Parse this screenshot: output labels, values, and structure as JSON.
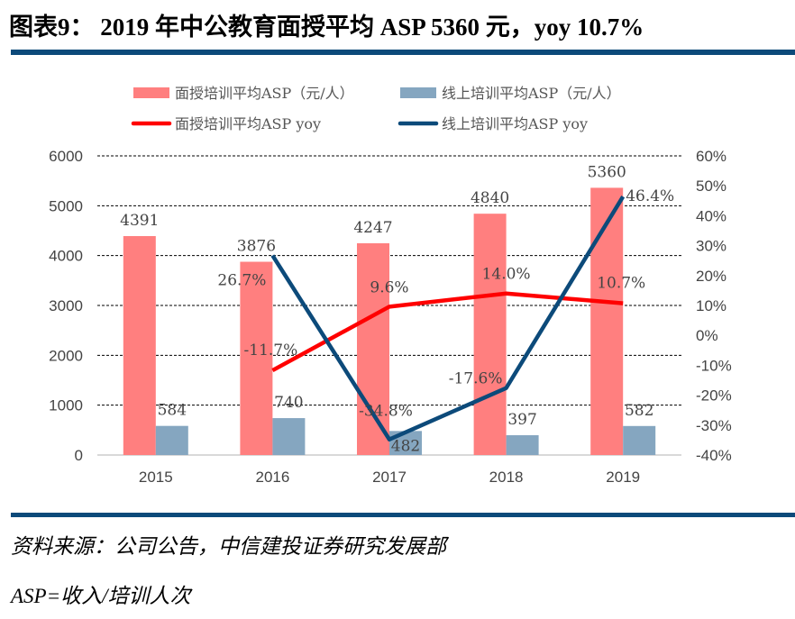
{
  "title": "图表9： 2019 年中公教育面授平均 ASP 5360 元，yoy 10.7%",
  "source": "资料来源：公司公告，中信建投证券研究发展部",
  "note": "ASP=收入/培训人次",
  "colors": {
    "rule": "#0c4a7a",
    "bar_offline": "#ff7f7f",
    "bar_online": "#85a6c0",
    "line_offline": "#ff0000",
    "line_online": "#0c4a7a"
  },
  "chart_data": {
    "type": "bar+line",
    "categories": [
      "2015",
      "2016",
      "2017",
      "2018",
      "2019"
    ],
    "ylim": [
      0,
      6000
    ],
    "y2lim": [
      -40,
      60
    ],
    "yticks": [
      "0",
      "1000",
      "2000",
      "3000",
      "4000",
      "5000",
      "6000"
    ],
    "y2ticks": [
      "-40%",
      "-30%",
      "-20%",
      "-10%",
      "0%",
      "10%",
      "20%",
      "30%",
      "40%",
      "50%",
      "60%"
    ],
    "grid": true,
    "legend_placement": "top",
    "bars": [
      {
        "name": "面授培训平均ASP（元/人）",
        "values": [
          4391,
          3876,
          4247,
          4840,
          5360
        ],
        "labels": [
          "4391",
          "3876",
          "4247",
          "4840",
          "5360"
        ]
      },
      {
        "name": "线上培训平均ASP（元/人）",
        "values": [
          584,
          740,
          482,
          397,
          582
        ],
        "labels": [
          "584",
          "740",
          "482",
          "397",
          "582"
        ]
      }
    ],
    "lines": [
      {
        "name": "面授培训平均ASP yoy",
        "values": [
          null,
          -11.7,
          9.6,
          14.0,
          10.7
        ],
        "labels": [
          "",
          "-11.7%",
          "9.6%",
          "14.0%",
          "10.7%"
        ]
      },
      {
        "name": "线上培训平均ASP yoy",
        "values": [
          null,
          26.7,
          -34.8,
          -17.6,
          46.4
        ],
        "labels": [
          "",
          "26.7%",
          "-34.8%",
          "-17.6%",
          "46.4%"
        ]
      }
    ]
  }
}
